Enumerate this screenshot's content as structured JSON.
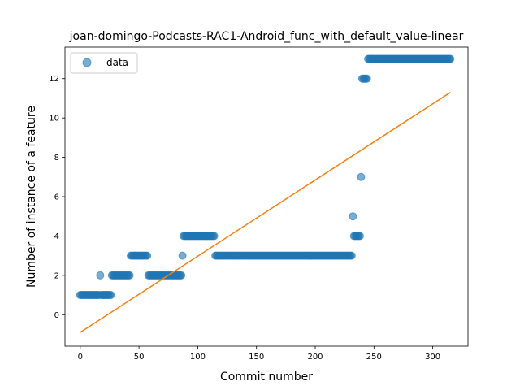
{
  "chart_data": {
    "type": "scatter",
    "title": "joan-domingo-Podcasts-RAC1-Android_func_with_default_value-linear",
    "xlabel": "Commit number",
    "ylabel": "Number of instance of a feature",
    "xlim": [
      -13,
      330
    ],
    "ylim": [
      -1.6,
      13.6
    ],
    "xticks": [
      0,
      50,
      100,
      150,
      200,
      250,
      300
    ],
    "yticks": [
      0,
      2,
      4,
      6,
      8,
      10,
      12
    ],
    "grid": false,
    "legend": {
      "position": "top-left",
      "entries": [
        "data"
      ]
    },
    "series": [
      {
        "name": "data",
        "kind": "points",
        "color": "#1f77b4",
        "alpha": 0.6,
        "segments": [
          {
            "x_start": 0,
            "x_end": 16,
            "y": 1
          },
          {
            "x_start": 17,
            "x_end": 17,
            "y": 2
          },
          {
            "x_start": 18,
            "x_end": 26,
            "y": 1
          },
          {
            "x_start": 27,
            "x_end": 42,
            "y": 2
          },
          {
            "x_start": 43,
            "x_end": 57,
            "y": 3
          },
          {
            "x_start": 58,
            "x_end": 86,
            "y": 2
          },
          {
            "x_start": 87,
            "x_end": 87,
            "y": 3
          },
          {
            "x_start": 88,
            "x_end": 114,
            "y": 4
          },
          {
            "x_start": 115,
            "x_end": 231,
            "y": 3
          },
          {
            "x_start": 232,
            "x_end": 232,
            "y": 5
          },
          {
            "x_start": 233,
            "x_end": 238,
            "y": 4
          },
          {
            "x_start": 239,
            "x_end": 239,
            "y": 7
          },
          {
            "x_start": 240,
            "x_end": 244,
            "y": 12
          },
          {
            "x_start": 245,
            "x_end": 315,
            "y": 13
          }
        ]
      },
      {
        "name": "",
        "kind": "line",
        "color": "#ff7f0e",
        "x": [
          0,
          315
        ],
        "y": [
          -0.9,
          11.3
        ]
      }
    ]
  }
}
